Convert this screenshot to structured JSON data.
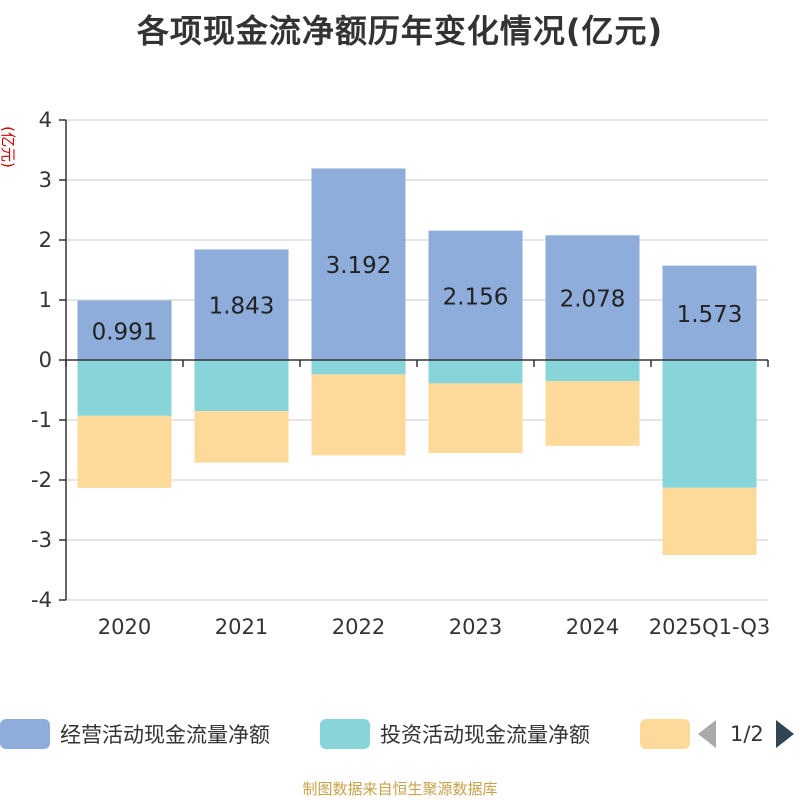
{
  "chart_data": {
    "type": "bar",
    "stacked": true,
    "title": "各项现金流净额历年变化情况(亿元)",
    "ylabel": "(亿元)",
    "xlabel": "",
    "ylim": [
      -4,
      4
    ],
    "yticks": [
      4,
      3,
      2,
      1,
      0,
      -1,
      -2,
      -3,
      -4
    ],
    "categories": [
      "2020",
      "2021",
      "2022",
      "2023",
      "2024",
      "2025Q1-Q3"
    ],
    "series": [
      {
        "name": "经营活动现金流量净额",
        "color": "#8eaddb",
        "values": [
          0.991,
          1.843,
          3.192,
          2.156,
          2.078,
          1.573
        ],
        "labels": [
          "0.991",
          "1.843",
          "3.192",
          "2.156",
          "2.078",
          "1.573"
        ]
      },
      {
        "name": "投资活动现金流量净额",
        "color": "#87d5d8",
        "values": [
          -0.93,
          -0.85,
          -0.24,
          -0.39,
          -0.35,
          -2.13
        ]
      },
      {
        "name": "",
        "color": "#fdd99a",
        "values": [
          -1.2,
          -0.86,
          -1.35,
          -1.16,
          -1.08,
          -1.12
        ]
      }
    ],
    "grid": true,
    "legend_position": "bottom"
  },
  "legend": {
    "pager_text": "1/2"
  },
  "source_note": "制图数据来自恒生聚源数据库"
}
